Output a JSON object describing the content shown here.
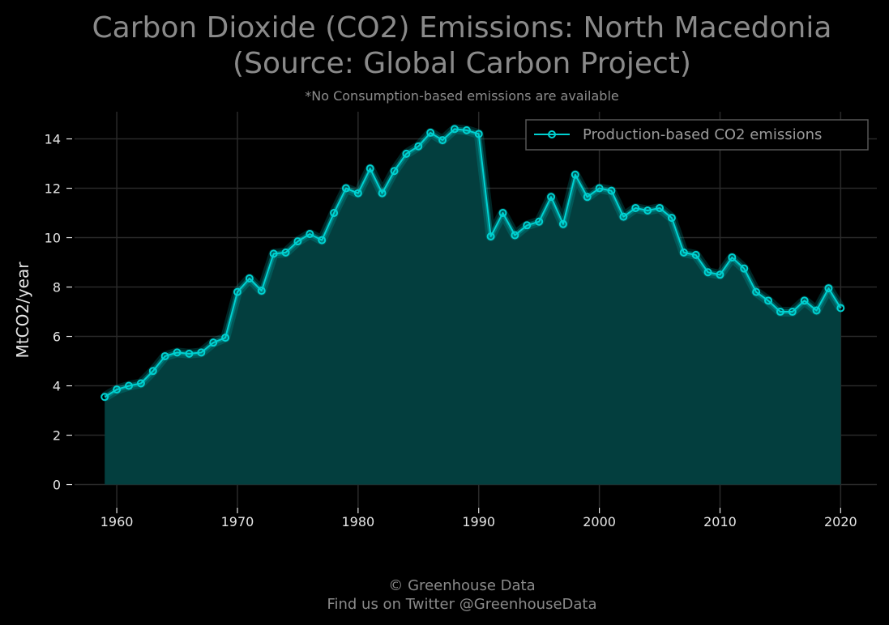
{
  "chart_data": {
    "type": "area",
    "title_line1": "Carbon Dioxide (CO2) Emissions: North Macedonia",
    "title_line2": "(Source: Global Carbon Project)",
    "subtitle": "*No Consumption-based emissions are available",
    "xlabel": "",
    "ylabel": "MtCO2/year",
    "xlim": [
      1956.5,
      2023
    ],
    "ylim": [
      -0.9,
      15.1
    ],
    "x_ticks": [
      1960,
      1970,
      1980,
      1990,
      2000,
      2010,
      2020
    ],
    "y_ticks": [
      0,
      2,
      4,
      6,
      8,
      10,
      12,
      14
    ],
    "grid": true,
    "legend_position": "top-right",
    "series": [
      {
        "name": "Production-based CO2 emissions",
        "color": "#00d1d1",
        "x": [
          1959,
          1960,
          1961,
          1962,
          1963,
          1964,
          1965,
          1966,
          1967,
          1968,
          1969,
          1970,
          1971,
          1972,
          1973,
          1974,
          1975,
          1976,
          1977,
          1978,
          1979,
          1980,
          1981,
          1982,
          1983,
          1984,
          1985,
          1986,
          1987,
          1988,
          1989,
          1990,
          1991,
          1992,
          1993,
          1994,
          1995,
          1996,
          1997,
          1998,
          1999,
          2000,
          2001,
          2002,
          2003,
          2004,
          2005,
          2006,
          2007,
          2008,
          2009,
          2010,
          2011,
          2012,
          2013,
          2014,
          2015,
          2016,
          2017,
          2018,
          2019,
          2020
        ],
        "values": [
          3.55,
          3.85,
          4.0,
          4.1,
          4.6,
          5.2,
          5.35,
          5.3,
          5.35,
          5.75,
          5.95,
          7.8,
          8.35,
          7.85,
          9.35,
          9.4,
          9.85,
          10.15,
          9.9,
          11.0,
          12.0,
          11.8,
          12.8,
          11.8,
          12.7,
          13.4,
          13.7,
          14.25,
          13.95,
          14.4,
          14.35,
          14.2,
          10.05,
          11.0,
          10.1,
          10.5,
          10.65,
          11.65,
          10.55,
          12.55,
          11.65,
          12.0,
          11.9,
          10.85,
          11.2,
          11.1,
          11.2,
          10.8,
          9.4,
          9.3,
          8.6,
          8.5,
          9.2,
          8.75,
          7.8,
          7.45,
          7.0,
          7.0,
          7.45,
          7.05,
          7.95,
          7.15
        ]
      }
    ]
  },
  "footer": {
    "line1": "© Greenhouse Data",
    "line2": "Find us on Twitter @GreenhouseData"
  },
  "colors": {
    "background": "#000000",
    "fill": "#033e3e",
    "line": "#00d1d1",
    "grid": "#2a2a2a",
    "text_muted": "#8a8a8a"
  }
}
